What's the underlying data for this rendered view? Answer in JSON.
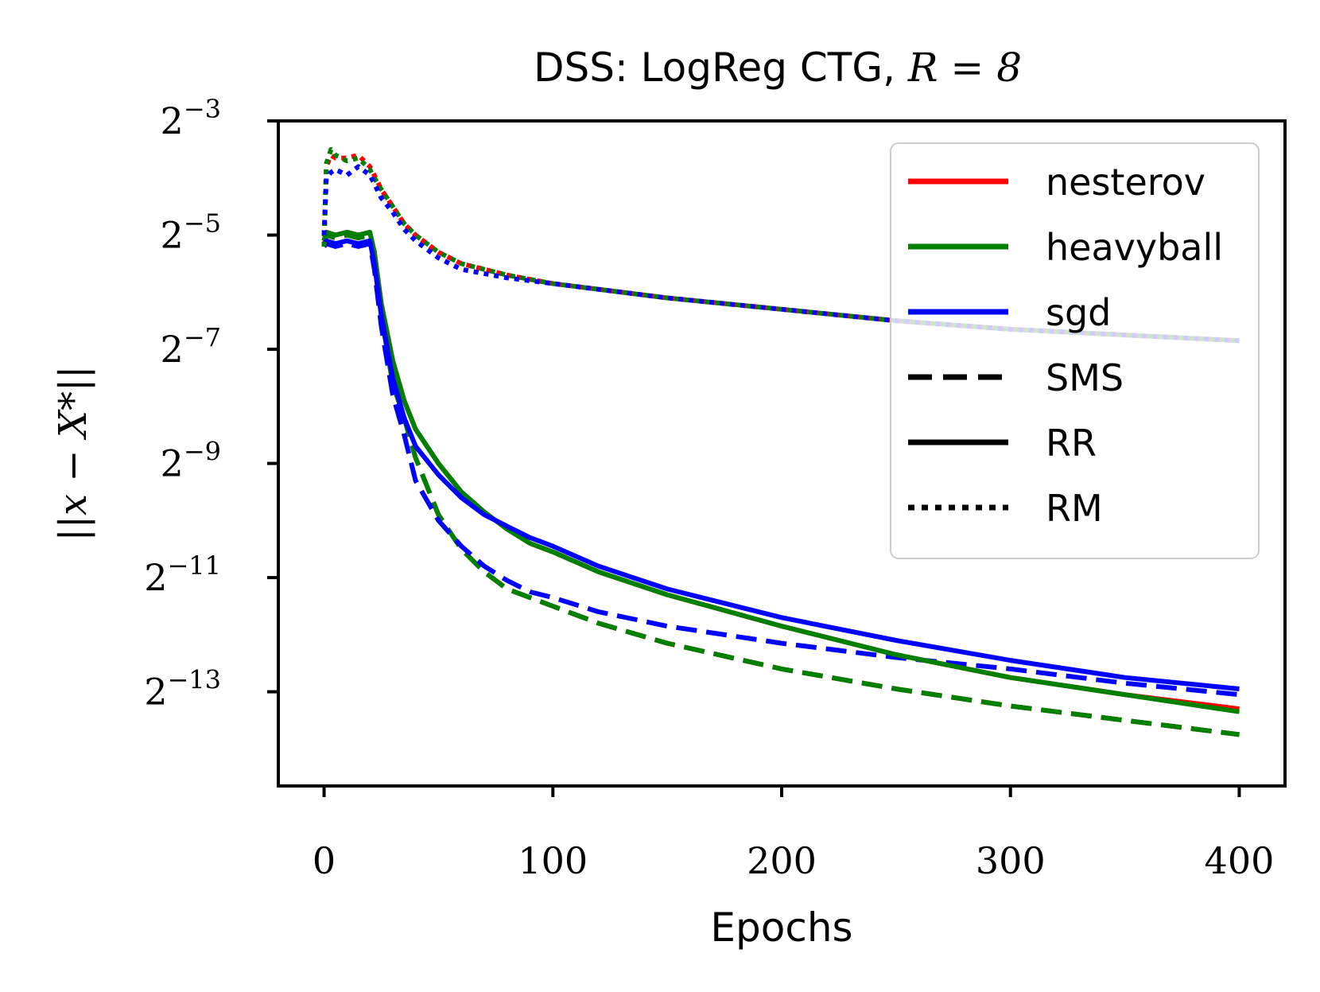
{
  "chart_data": {
    "type": "line",
    "title": "DSS: LogReg CTG, ",
    "title_math": "R = 8",
    "xlabel": "Epochs",
    "ylabel": "||x − X*||",
    "xlim": [
      -20,
      420
    ],
    "ylim_log2": [
      -14.65,
      -3
    ],
    "yscale": "log2",
    "grid": false,
    "xticks": [
      0,
      100,
      200,
      300,
      400
    ],
    "xtick_labels": [
      "0",
      "100",
      "200",
      "300",
      "400"
    ],
    "ytick_exponents": [
      -3,
      -5,
      -7,
      -9,
      -11,
      -13
    ],
    "ytick_base": "2",
    "ytick_labels": [
      "−3",
      "−5",
      "−7",
      "−9",
      "−11",
      "−13"
    ],
    "legend_position": "top-right",
    "legend": [
      {
        "label": "nesterov",
        "color": "#ff0000",
        "style": "solid"
      },
      {
        "label": "heavyball",
        "color": "#008000",
        "style": "solid"
      },
      {
        "label": "sgd",
        "color": "#0000ff",
        "style": "solid"
      },
      {
        "label": "SMS",
        "color": "#000000",
        "style": "dashed"
      },
      {
        "label": "RR",
        "color": "#000000",
        "style": "solid"
      },
      {
        "label": "RM",
        "color": "#000000",
        "style": "dotted"
      }
    ],
    "series": [
      {
        "name": "nesterov SMS",
        "color": "#ff0000",
        "style": "dashed",
        "x": [
          0,
          1,
          5,
          10,
          15,
          20,
          22,
          25,
          30,
          35,
          40,
          50,
          60,
          70,
          80,
          90,
          100,
          120,
          150,
          200,
          250,
          300,
          350,
          400
        ],
        "y_log2": [
          -5.2,
          -5.0,
          -5.05,
          -5.0,
          -5.05,
          -5.0,
          -5.4,
          -6.4,
          -7.6,
          -8.2,
          -8.9,
          -9.9,
          -10.5,
          -10.9,
          -11.2,
          -11.35,
          -11.5,
          -11.8,
          -12.15,
          -12.6,
          -12.95,
          -13.25,
          -13.5,
          -13.75
        ]
      },
      {
        "name": "heavyball SMS",
        "color": "#008000",
        "style": "dashed",
        "x": [
          0,
          1,
          5,
          10,
          15,
          20,
          22,
          25,
          30,
          35,
          40,
          50,
          60,
          70,
          80,
          90,
          100,
          120,
          150,
          200,
          250,
          300,
          350,
          400
        ],
        "y_log2": [
          -5.2,
          -5.0,
          -5.05,
          -5.0,
          -5.05,
          -5.0,
          -5.4,
          -6.4,
          -7.6,
          -8.2,
          -8.9,
          -9.9,
          -10.5,
          -10.9,
          -11.2,
          -11.35,
          -11.5,
          -11.8,
          -12.15,
          -12.6,
          -12.95,
          -13.25,
          -13.5,
          -13.75
        ]
      },
      {
        "name": "sgd SMS",
        "color": "#0000ff",
        "style": "dashed",
        "x": [
          0,
          1,
          5,
          10,
          15,
          20,
          22,
          25,
          30,
          35,
          40,
          50,
          60,
          70,
          80,
          90,
          100,
          120,
          150,
          200,
          250,
          300,
          350,
          400
        ],
        "y_log2": [
          -5.2,
          -5.15,
          -5.2,
          -5.15,
          -5.2,
          -5.15,
          -5.6,
          -6.6,
          -7.8,
          -8.5,
          -9.3,
          -10.0,
          -10.45,
          -10.8,
          -11.05,
          -11.25,
          -11.35,
          -11.6,
          -11.85,
          -12.15,
          -12.4,
          -12.6,
          -12.85,
          -13.05
        ]
      },
      {
        "name": "nesterov RR",
        "color": "#ff0000",
        "style": "solid",
        "x": [
          0,
          1,
          5,
          10,
          15,
          20,
          22,
          25,
          30,
          35,
          40,
          50,
          60,
          70,
          80,
          90,
          100,
          120,
          150,
          200,
          250,
          300,
          350,
          400
        ],
        "y_log2": [
          -5.1,
          -4.95,
          -5.0,
          -4.95,
          -5.0,
          -4.95,
          -5.3,
          -6.2,
          -7.2,
          -7.9,
          -8.4,
          -9.0,
          -9.5,
          -9.85,
          -10.15,
          -10.4,
          -10.55,
          -10.9,
          -11.3,
          -11.85,
          -12.35,
          -12.75,
          -13.05,
          -13.3
        ]
      },
      {
        "name": "heavyball RR",
        "color": "#008000",
        "style": "solid",
        "x": [
          0,
          1,
          5,
          10,
          15,
          20,
          22,
          25,
          30,
          35,
          40,
          50,
          60,
          70,
          80,
          90,
          100,
          120,
          150,
          200,
          250,
          300,
          350,
          400
        ],
        "y_log2": [
          -5.1,
          -4.95,
          -5.0,
          -4.95,
          -5.0,
          -4.95,
          -5.3,
          -6.2,
          -7.2,
          -7.9,
          -8.4,
          -9.0,
          -9.5,
          -9.85,
          -10.15,
          -10.4,
          -10.55,
          -10.9,
          -11.3,
          -11.85,
          -12.35,
          -12.75,
          -13.05,
          -13.35
        ]
      },
      {
        "name": "sgd RR",
        "color": "#0000ff",
        "style": "solid",
        "x": [
          0,
          1,
          5,
          10,
          15,
          20,
          22,
          25,
          30,
          35,
          40,
          50,
          60,
          70,
          80,
          90,
          100,
          120,
          150,
          200,
          250,
          300,
          350,
          400
        ],
        "y_log2": [
          -5.2,
          -5.1,
          -5.15,
          -5.1,
          -5.15,
          -5.1,
          -5.5,
          -6.4,
          -7.5,
          -8.2,
          -8.7,
          -9.2,
          -9.6,
          -9.9,
          -10.1,
          -10.3,
          -10.45,
          -10.8,
          -11.2,
          -11.7,
          -12.1,
          -12.45,
          -12.75,
          -12.95
        ]
      },
      {
        "name": "nesterov RM",
        "color": "#ff0000",
        "style": "dotted",
        "x": [
          0,
          1,
          3,
          5,
          10,
          15,
          20,
          22,
          25,
          30,
          35,
          40,
          50,
          60,
          80,
          100,
          120,
          150,
          200,
          250,
          300,
          350,
          400
        ],
        "y_log2": [
          -5.2,
          -3.8,
          -3.6,
          -3.65,
          -3.65,
          -3.6,
          -3.8,
          -3.95,
          -4.2,
          -4.5,
          -4.8,
          -5.0,
          -5.3,
          -5.5,
          -5.7,
          -5.85,
          -5.95,
          -6.1,
          -6.3,
          -6.5,
          -6.65,
          -6.75,
          -6.85
        ]
      },
      {
        "name": "heavyball RM",
        "color": "#008000",
        "style": "dotted",
        "x": [
          0,
          1,
          3,
          5,
          10,
          15,
          20,
          22,
          25,
          30,
          35,
          40,
          50,
          60,
          80,
          100,
          120,
          150,
          200,
          250,
          300,
          350,
          400
        ],
        "y_log2": [
          -5.2,
          -3.75,
          -3.5,
          -3.6,
          -3.7,
          -3.65,
          -3.85,
          -4.0,
          -4.2,
          -4.5,
          -4.8,
          -5.0,
          -5.3,
          -5.5,
          -5.7,
          -5.85,
          -5.95,
          -6.1,
          -6.3,
          -6.5,
          -6.65,
          -6.75,
          -6.85
        ]
      },
      {
        "name": "sgd RM",
        "color": "#0000ff",
        "style": "dotted",
        "x": [
          0,
          1,
          3,
          5,
          10,
          15,
          20,
          22,
          25,
          30,
          35,
          40,
          50,
          60,
          80,
          100,
          120,
          150,
          200,
          250,
          300,
          350,
          400
        ],
        "y_log2": [
          -5.0,
          -4.0,
          -3.9,
          -3.85,
          -3.95,
          -3.8,
          -3.95,
          -4.1,
          -4.35,
          -4.6,
          -4.9,
          -5.1,
          -5.4,
          -5.6,
          -5.75,
          -5.85,
          -5.95,
          -6.1,
          -6.3,
          -6.5,
          -6.65,
          -6.75,
          -6.85
        ]
      }
    ]
  }
}
